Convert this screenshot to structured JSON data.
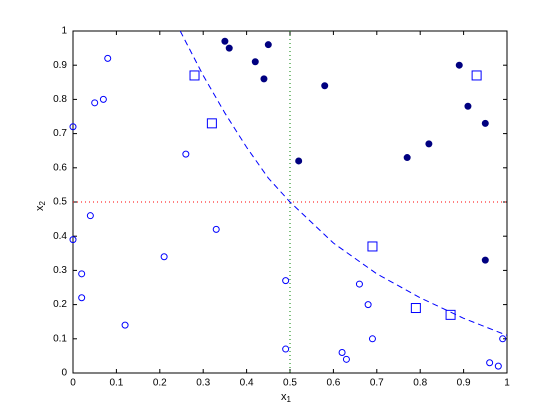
{
  "chart_data": {
    "type": "scatter",
    "xlabel": {
      "text": "x",
      "subscript": "1"
    },
    "ylabel": {
      "text": "x",
      "subscript": "2"
    },
    "xlim": [
      0,
      1
    ],
    "ylim": [
      0,
      1
    ],
    "xticks": [
      0,
      0.1,
      0.2,
      0.3,
      0.4,
      0.5,
      0.6,
      0.7,
      0.8,
      0.9,
      1
    ],
    "yticks": [
      0,
      0.1,
      0.2,
      0.3,
      0.4,
      0.5,
      0.6,
      0.7,
      0.8,
      0.9,
      1
    ],
    "grid": false,
    "series": [
      {
        "marker": "open-circle",
        "color": "#0000ff",
        "x": [
          0,
          0.08,
          0.05,
          0.07,
          0.26,
          0.04,
          0,
          0.02,
          0.02,
          0.21,
          0.33,
          0.12,
          0.49,
          0.49,
          0.66,
          0.68,
          0.69,
          0.62,
          0.63,
          0.96,
          0.98,
          0.99
        ],
        "values": [
          0.72,
          0.92,
          0.79,
          0.8,
          0.64,
          0.46,
          0.39,
          0.29,
          0.22,
          0.34,
          0.42,
          0.14,
          0.27,
          0.07,
          0.26,
          0.2,
          0.1,
          0.06,
          0.04,
          0.03,
          0.02,
          0.1
        ]
      },
      {
        "marker": "filled-circle",
        "color": "#000080",
        "x": [
          0.35,
          0.36,
          0.45,
          0.42,
          0.44,
          0.58,
          0.52,
          0.89,
          0.91,
          0.95,
          0.77,
          0.82,
          0.95
        ],
        "values": [
          0.97,
          0.95,
          0.96,
          0.91,
          0.86,
          0.84,
          0.62,
          0.9,
          0.78,
          0.73,
          0.63,
          0.67,
          0.33
        ]
      },
      {
        "marker": "open-square",
        "color": "#0000ff",
        "x": [
          0.28,
          0.32,
          0.93,
          0.69,
          0.79,
          0.87
        ],
        "values": [
          0.87,
          0.73,
          0.87,
          0.37,
          0.19,
          0.17
        ]
      },
      {
        "marker": "dashed-line",
        "color": "#0000ff",
        "x": [
          0.247,
          0.3,
          0.35,
          0.4,
          0.45,
          0.5,
          0.6,
          0.7,
          0.8,
          0.9,
          1
        ],
        "values": [
          1,
          0.87,
          0.76,
          0.66,
          0.57,
          0.5,
          0.38,
          0.29,
          0.22,
          0.16,
          0.11
        ]
      }
    ],
    "hlines": [
      {
        "value": 0.5,
        "color": "#ff0000"
      }
    ],
    "vlines": [
      {
        "value": 0.5,
        "color": "#008000"
      }
    ]
  }
}
